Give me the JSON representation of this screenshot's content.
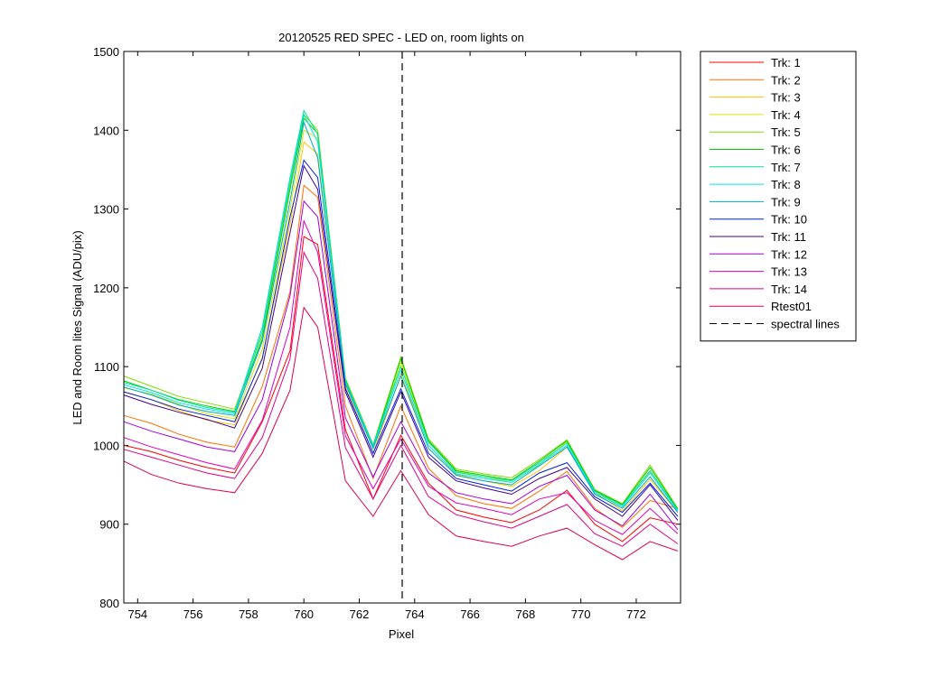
{
  "chart_data": {
    "type": "line",
    "title": "20120525 RED SPEC - LED on, room lights on",
    "xlabel": "Pixel",
    "ylabel": "LED and Room lites Signal (ADU/pix)",
    "xlim": [
      753.5,
      773.6
    ],
    "ylim": [
      800,
      1500
    ],
    "xticks": [
      754,
      756,
      758,
      760,
      762,
      764,
      766,
      768,
      770,
      772
    ],
    "yticks": [
      800,
      900,
      1000,
      1100,
      1200,
      1300,
      1400,
      1500
    ],
    "grid": false,
    "legend_position": "outside-top-right",
    "x": [
      753.5,
      754.5,
      755.5,
      756.5,
      757.5,
      758.5,
      759.5,
      760.0,
      760.5,
      761.5,
      762.5,
      763.5,
      764.5,
      765.5,
      766.5,
      767.5,
      768.5,
      769.5,
      770.5,
      771.5,
      772.5,
      773.5
    ],
    "series": [
      {
        "name": "Trk: 1",
        "color": "#ff0000",
        "values": [
          1000,
          992,
          981,
          972,
          965,
          1030,
          1120,
          1265,
          1255,
          1020,
          932,
          1013,
          952,
          918,
          909,
          902,
          918,
          943,
          900,
          878,
          908,
          900
        ]
      },
      {
        "name": "Trk: 2",
        "color": "#ff7000",
        "values": [
          1038,
          1028,
          1014,
          1004,
          998,
          1075,
          1195,
          1330,
          1315,
          1050,
          958,
          1050,
          971,
          936,
          926,
          920,
          942,
          967,
          920,
          896,
          930,
          920
        ]
      },
      {
        "name": "Trk: 3",
        "color": "#ffc400",
        "values": [
          1068,
          1058,
          1044,
          1032,
          1026,
          1112,
          1280,
          1385,
          1370,
          1075,
          990,
          1090,
          1000,
          963,
          955,
          948,
          968,
          998,
          940,
          917,
          957,
          915
        ]
      },
      {
        "name": "Trk: 4",
        "color": "#d4e600",
        "values": [
          1073,
          1065,
          1052,
          1040,
          1034,
          1122,
          1300,
          1400,
          1390,
          1080,
          997,
          1105,
          1005,
          967,
          960,
          953,
          975,
          1005,
          942,
          922,
          966,
          918
        ]
      },
      {
        "name": "Trk: 5",
        "color": "#7fdc00",
        "values": [
          1088,
          1075,
          1062,
          1054,
          1046,
          1140,
          1330,
          1420,
          1400,
          1085,
          1001,
          1112,
          1008,
          970,
          964,
          959,
          982,
          1007,
          944,
          926,
          975,
          920
        ]
      },
      {
        "name": "Trk: 6",
        "color": "#00d000",
        "values": [
          1082,
          1070,
          1058,
          1050,
          1043,
          1135,
          1325,
          1415,
          1396,
          1083,
          999,
          1110,
          1006,
          968,
          962,
          956,
          980,
          1006,
          943,
          925,
          972,
          919
        ]
      },
      {
        "name": "Trk: 7",
        "color": "#00e0a0",
        "values": [
          1080,
          1070,
          1057,
          1048,
          1042,
          1150,
          1340,
          1425,
          1395,
          1082,
          1000,
          1100,
          1004,
          966,
          960,
          955,
          978,
          1003,
          942,
          924,
          968,
          918
        ]
      },
      {
        "name": "Trk: 8",
        "color": "#00e4e4",
        "values": [
          1077,
          1067,
          1054,
          1046,
          1040,
          1145,
          1335,
          1420,
          1385,
          1080,
          998,
          1095,
          1000,
          964,
          958,
          953,
          976,
          1000,
          940,
          922,
          965,
          917
        ]
      },
      {
        "name": "Trk: 9",
        "color": "#00a8c8",
        "values": [
          1074,
          1064,
          1051,
          1043,
          1038,
          1132,
          1310,
          1410,
          1365,
          1078,
          996,
          1088,
          996,
          962,
          955,
          950,
          974,
          998,
          938,
          920,
          960,
          915
        ]
      },
      {
        "name": "Trk: 10",
        "color": "#0020e0",
        "values": [
          1068,
          1058,
          1046,
          1038,
          1030,
          1110,
          1290,
          1362,
          1340,
          1072,
          990,
          1072,
          990,
          958,
          950,
          942,
          965,
          978,
          935,
          915,
          952,
          910
        ]
      },
      {
        "name": "Trk: 11",
        "color": "#400090",
        "values": [
          1064,
          1052,
          1042,
          1033,
          1022,
          1098,
          1270,
          1355,
          1325,
          1068,
          985,
          1068,
          985,
          955,
          946,
          938,
          958,
          972,
          932,
          910,
          950,
          905
        ]
      },
      {
        "name": "Trk: 12",
        "color": "#a000e0",
        "values": [
          1030,
          1018,
          1008,
          998,
          992,
          1058,
          1190,
          1310,
          1290,
          1035,
          960,
          1030,
          965,
          940,
          932,
          926,
          948,
          962,
          918,
          898,
          938,
          893
        ]
      },
      {
        "name": "Trk: 13",
        "color": "#e000c0",
        "values": [
          1010,
          998,
          988,
          978,
          970,
          1032,
          1150,
          1285,
          1245,
          1012,
          945,
          1008,
          948,
          927,
          920,
          912,
          932,
          940,
          905,
          887,
          920,
          888
        ]
      },
      {
        "name": "Trk: 14",
        "color": "#e00088",
        "values": [
          995,
          985,
          975,
          965,
          958,
          1010,
          1110,
          1245,
          1212,
          997,
          932,
          1000,
          935,
          912,
          903,
          895,
          910,
          925,
          888,
          872,
          900,
          875
        ]
      },
      {
        "name": "Rtest01",
        "color": "#e0004a",
        "values": [
          980,
          963,
          952,
          945,
          940,
          990,
          1070,
          1175,
          1150,
          955,
          910,
          968,
          912,
          885,
          878,
          872,
          885,
          895,
          874,
          855,
          878,
          866
        ]
      }
    ],
    "reference_lines": [
      {
        "name": "spectral lines",
        "x": 763.55,
        "style": "dashed",
        "color": "#000000"
      }
    ]
  }
}
